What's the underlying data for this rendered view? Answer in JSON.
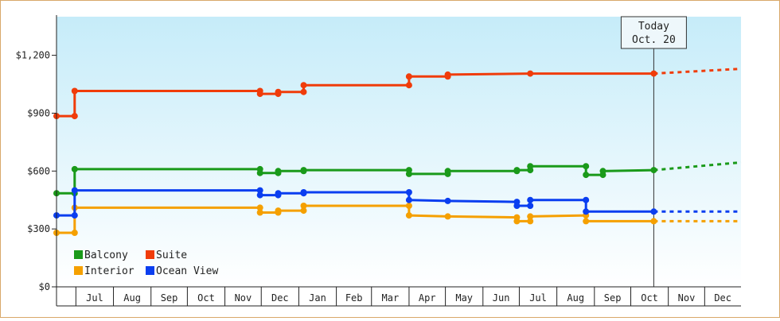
{
  "chart_data": {
    "type": "line",
    "title": "",
    "xlabel": "",
    "ylabel": "",
    "ylim": [
      0,
      1400
    ],
    "y_ticks": [
      "$0",
      "$300",
      "$600",
      "$900",
      "$1,200"
    ],
    "y_tick_values": [
      0,
      300,
      600,
      900,
      1200
    ],
    "x_ticks": [
      "Jul",
      "Aug",
      "Sep",
      "Oct",
      "Nov",
      "Dec",
      "Jan",
      "Feb",
      "Mar",
      "Apr",
      "May",
      "Jun",
      "Jul",
      "Aug",
      "Sep",
      "Oct",
      "Nov",
      "Dec"
    ],
    "x_range": [
      "2023-06-15",
      "2024-12-31"
    ],
    "grid": false,
    "background": "gradient light-blue top to white bottom",
    "legend_placement": "bottom-left",
    "today_marker": {
      "line1": "Today",
      "line2": "Oct. 20",
      "date": "2024-10-20"
    },
    "series": [
      {
        "name": "Balcony",
        "color": "#1a9a1a",
        "points": [
          [
            "2023-06-15",
            485
          ],
          [
            "2023-06-30",
            485
          ],
          [
            "2023-06-30",
            610
          ],
          [
            "2023-11-30",
            610
          ],
          [
            "2023-11-30",
            590
          ],
          [
            "2023-12-15",
            590
          ],
          [
            "2023-12-15",
            600
          ],
          [
            "2024-01-05",
            600
          ],
          [
            "2024-01-05",
            605
          ],
          [
            "2024-04-01",
            605
          ],
          [
            "2024-04-01",
            585
          ],
          [
            "2024-05-03",
            585
          ],
          [
            "2024-05-03",
            600
          ],
          [
            "2024-06-29",
            600
          ],
          [
            "2024-06-29",
            605
          ],
          [
            "2024-07-10",
            605
          ],
          [
            "2024-07-10",
            625
          ],
          [
            "2024-08-25",
            625
          ],
          [
            "2024-08-25",
            580
          ],
          [
            "2024-09-08",
            580
          ],
          [
            "2024-09-08",
            600
          ],
          [
            "2024-10-20",
            605
          ]
        ],
        "forecast": [
          [
            "2024-10-20",
            605
          ],
          [
            "2024-12-31",
            645
          ]
        ]
      },
      {
        "name": "Suite",
        "color": "#f03c0a",
        "points": [
          [
            "2023-06-15",
            885
          ],
          [
            "2023-06-30",
            885
          ],
          [
            "2023-06-30",
            1015
          ],
          [
            "2023-11-30",
            1015
          ],
          [
            "2023-11-30",
            1000
          ],
          [
            "2023-12-15",
            1000
          ],
          [
            "2023-12-15",
            1010
          ],
          [
            "2024-01-05",
            1010
          ],
          [
            "2024-01-05",
            1045
          ],
          [
            "2024-04-01",
            1045
          ],
          [
            "2024-04-01",
            1090
          ],
          [
            "2024-05-03",
            1090
          ],
          [
            "2024-05-03",
            1100
          ],
          [
            "2024-07-10",
            1105
          ],
          [
            "2024-10-20",
            1105
          ]
        ],
        "forecast": [
          [
            "2024-10-20",
            1105
          ],
          [
            "2024-12-31",
            1130
          ]
        ]
      },
      {
        "name": "Interior",
        "color": "#f5a000",
        "points": [
          [
            "2023-06-15",
            280
          ],
          [
            "2023-06-30",
            280
          ],
          [
            "2023-06-30",
            410
          ],
          [
            "2023-11-30",
            410
          ],
          [
            "2023-11-30",
            385
          ],
          [
            "2023-12-15",
            385
          ],
          [
            "2023-12-15",
            395
          ],
          [
            "2024-01-05",
            395
          ],
          [
            "2024-01-05",
            420
          ],
          [
            "2024-04-01",
            420
          ],
          [
            "2024-04-01",
            370
          ],
          [
            "2024-05-03",
            365
          ],
          [
            "2024-06-29",
            360
          ],
          [
            "2024-06-29",
            340
          ],
          [
            "2024-07-10",
            340
          ],
          [
            "2024-07-10",
            365
          ],
          [
            "2024-08-25",
            370
          ],
          [
            "2024-08-25",
            340
          ],
          [
            "2024-10-20",
            340
          ]
        ],
        "forecast": [
          [
            "2024-10-20",
            340
          ],
          [
            "2024-12-31",
            340
          ]
        ]
      },
      {
        "name": "Ocean View",
        "color": "#0a3ef0",
        "points": [
          [
            "2023-06-15",
            370
          ],
          [
            "2023-06-30",
            370
          ],
          [
            "2023-06-30",
            500
          ],
          [
            "2023-11-30",
            500
          ],
          [
            "2023-11-30",
            475
          ],
          [
            "2023-12-15",
            475
          ],
          [
            "2023-12-15",
            485
          ],
          [
            "2024-01-05",
            485
          ],
          [
            "2024-01-05",
            490
          ],
          [
            "2024-04-01",
            490
          ],
          [
            "2024-04-01",
            450
          ],
          [
            "2024-05-03",
            445
          ],
          [
            "2024-06-29",
            440
          ],
          [
            "2024-06-29",
            420
          ],
          [
            "2024-07-10",
            420
          ],
          [
            "2024-07-10",
            450
          ],
          [
            "2024-08-25",
            450
          ],
          [
            "2024-08-25",
            390
          ],
          [
            "2024-10-20",
            390
          ]
        ],
        "forecast": [
          [
            "2024-10-20",
            390
          ],
          [
            "2024-12-31",
            390
          ]
        ]
      }
    ]
  }
}
